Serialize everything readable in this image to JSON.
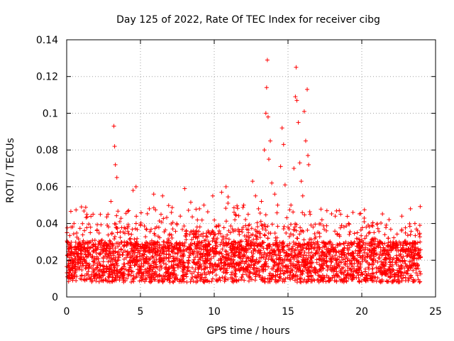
{
  "chart_data": {
    "type": "scatter",
    "title": "Day 125 of 2022, Rate Of TEC Index for receiver cibg",
    "xlabel": "GPS time / hours",
    "ylabel": "ROTI / TECUs",
    "xlim": [
      0,
      25
    ],
    "ylim": [
      0,
      0.14
    ],
    "x_ticks": [
      0,
      5,
      10,
      15,
      20,
      25
    ],
    "y_ticks": [
      0,
      0.02,
      0.04,
      0.06,
      0.08,
      0.1,
      0.12,
      0.14
    ],
    "grid": true,
    "marker": "plus",
    "marker_color": "#ff0000",
    "series": [
      {
        "name": "ROTI",
        "x": [
          0.1,
          0.3,
          0.5,
          0.8,
          1.0,
          1.3,
          1.6,
          2.0,
          2.4,
          2.8,
          3.0,
          3.2,
          3.25,
          3.3,
          3.4,
          3.6,
          3.9,
          4.2,
          4.5,
          4.7,
          5.0,
          5.3,
          5.6,
          5.9,
          6.2,
          6.5,
          6.8,
          7.1,
          7.4,
          7.7,
          8.0,
          8.3,
          8.6,
          9.0,
          9.3,
          9.6,
          9.9,
          10.2,
          10.5,
          10.8,
          11.1,
          11.4,
          11.7,
          12.0,
          12.3,
          12.6,
          12.8,
          13.0,
          13.2,
          13.4,
          13.5,
          13.55,
          13.6,
          13.65,
          13.7,
          13.8,
          13.9,
          14.1,
          14.3,
          14.5,
          14.6,
          14.7,
          14.8,
          15.0,
          15.2,
          15.4,
          15.5,
          15.55,
          15.6,
          15.7,
          15.8,
          15.9,
          16.0,
          16.1,
          16.2,
          16.3,
          16.35,
          16.4,
          16.5,
          16.7,
          17.0,
          17.3,
          17.6,
          17.9,
          18.2,
          18.5,
          18.8,
          19.1,
          19.4,
          19.7,
          20.0,
          20.3,
          20.6,
          20.9,
          21.2,
          21.5,
          21.8,
          22.1,
          22.4,
          22.7,
          23.0,
          23.3,
          23.6,
          23.9
        ],
        "y": [
          0.016,
          0.038,
          0.019,
          0.022,
          0.049,
          0.017,
          0.035,
          0.024,
          0.031,
          0.045,
          0.052,
          0.093,
          0.082,
          0.072,
          0.065,
          0.041,
          0.028,
          0.047,
          0.058,
          0.06,
          0.039,
          0.025,
          0.048,
          0.056,
          0.033,
          0.055,
          0.03,
          0.046,
          0.021,
          0.044,
          0.059,
          0.027,
          0.036,
          0.048,
          0.05,
          0.029,
          0.055,
          0.032,
          0.057,
          0.06,
          0.035,
          0.042,
          0.034,
          0.05,
          0.045,
          0.063,
          0.055,
          0.048,
          0.052,
          0.08,
          0.1,
          0.114,
          0.129,
          0.098,
          0.075,
          0.085,
          0.062,
          0.056,
          0.05,
          0.071,
          0.092,
          0.083,
          0.061,
          0.038,
          0.05,
          0.07,
          0.109,
          0.125,
          0.107,
          0.095,
          0.073,
          0.063,
          0.055,
          0.101,
          0.085,
          0.113,
          0.077,
          0.072,
          0.045,
          0.038,
          0.03,
          0.042,
          0.036,
          0.026,
          0.044,
          0.033,
          0.029,
          0.04,
          0.046,
          0.035,
          0.031,
          0.038,
          0.028,
          0.024,
          0.03,
          0.025,
          0.032,
          0.027,
          0.021,
          0.036,
          0.029,
          0.048,
          0.04,
          0.034
        ]
      }
    ]
  }
}
